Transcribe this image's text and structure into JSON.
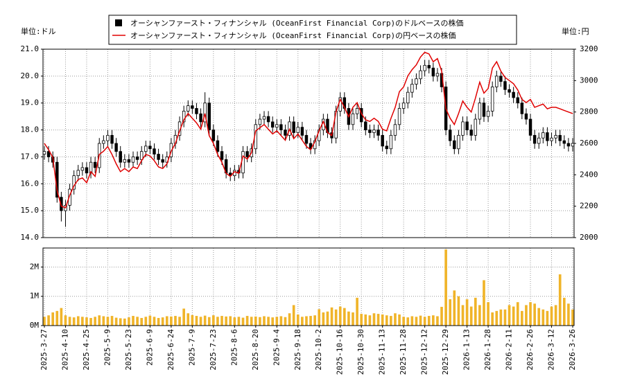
{
  "chart_data": [
    {
      "type": "candlestick",
      "y_unit_label": "単位:ドル",
      "y2_unit_label": "単位:円",
      "candles": {
        "name": "オーシャンファースト・フィナンシャル (OceanFirst Financial Corp)のドルベースの株価",
        "color": "#000000",
        "open": [
          17.1,
          17.2,
          17.0,
          16.8,
          15.5,
          15.0,
          15.2,
          15.8,
          16.3,
          16.5,
          16.6,
          16.4,
          16.8,
          16.6,
          17.5,
          17.6,
          17.8,
          17.5,
          17.2,
          16.8,
          16.9,
          16.8,
          17.0,
          16.9,
          17.2,
          17.4,
          17.3,
          17.1,
          16.9,
          16.8,
          17.0,
          17.5,
          17.8,
          18.3,
          18.7,
          18.9,
          18.8,
          18.6,
          18.3,
          19.0,
          18.0,
          17.6,
          17.2,
          16.9,
          16.4,
          16.3,
          16.5,
          16.4,
          17.2,
          17.0,
          17.3,
          18.2,
          18.4,
          18.5,
          18.3,
          18.1,
          18.2,
          18.0,
          17.8,
          18.3,
          17.9,
          18.1,
          17.8,
          17.5,
          17.3,
          17.6,
          18.0,
          18.4,
          17.9,
          17.7,
          18.7,
          19.2,
          18.8,
          18.2,
          18.6,
          18.8,
          18.3,
          18.0,
          17.9,
          18.0,
          17.8,
          17.4,
          17.3,
          17.8,
          18.2,
          18.8,
          19.0,
          19.4,
          19.7,
          19.9,
          20.2,
          20.4,
          20.3,
          20.0,
          20.1,
          19.6,
          18.0,
          17.6,
          17.3,
          17.8,
          18.3,
          18.0,
          17.8,
          18.4,
          19.0,
          18.5,
          18.7,
          19.6,
          20.0,
          19.8,
          19.5,
          19.4,
          19.2,
          19.0,
          18.6,
          18.4,
          17.8,
          17.5,
          17.7,
          17.9,
          17.6,
          17.7,
          17.8,
          17.6,
          17.5,
          17.4
        ],
        "high": [
          17.4,
          17.4,
          17.2,
          17.0,
          15.7,
          15.4,
          16.0,
          16.5,
          16.7,
          16.8,
          16.8,
          17.0,
          17.0,
          17.7,
          17.8,
          18.0,
          18.0,
          17.7,
          17.4,
          17.1,
          17.1,
          17.2,
          17.2,
          17.4,
          17.6,
          17.6,
          17.5,
          17.3,
          17.1,
          17.2,
          17.7,
          18.0,
          18.5,
          18.9,
          19.1,
          19.1,
          19.0,
          18.8,
          19.4,
          19.2,
          18.2,
          17.8,
          17.4,
          17.1,
          16.6,
          16.7,
          16.7,
          17.4,
          17.4,
          17.5,
          18.4,
          18.6,
          18.7,
          18.7,
          18.5,
          18.4,
          18.4,
          18.2,
          18.5,
          18.5,
          18.3,
          18.3,
          18.0,
          17.7,
          17.8,
          18.2,
          18.6,
          18.6,
          18.1,
          18.9,
          19.4,
          19.4,
          19.0,
          18.8,
          19.0,
          19.0,
          18.5,
          18.2,
          18.2,
          18.2,
          18.0,
          17.6,
          18.0,
          18.4,
          19.0,
          19.2,
          19.6,
          19.9,
          20.1,
          20.4,
          20.6,
          20.6,
          20.5,
          20.3,
          20.3,
          19.8,
          18.2,
          17.8,
          18.0,
          18.5,
          18.5,
          18.2,
          18.6,
          19.2,
          19.2,
          18.9,
          19.8,
          20.2,
          20.2,
          20.0,
          19.7,
          19.6,
          19.4,
          19.2,
          18.8,
          18.6,
          18.0,
          17.9,
          18.1,
          18.1,
          17.9,
          18.0,
          18.0,
          17.8,
          17.7,
          17.7
        ],
        "low": [
          16.9,
          16.8,
          16.6,
          15.3,
          14.6,
          14.4,
          15.0,
          15.6,
          16.1,
          16.3,
          16.2,
          16.2,
          16.4,
          16.4,
          17.3,
          17.4,
          17.3,
          17.0,
          16.6,
          16.6,
          16.6,
          16.6,
          16.7,
          16.7,
          17.0,
          17.1,
          16.9,
          16.7,
          16.6,
          16.6,
          16.8,
          17.3,
          17.6,
          18.1,
          18.5,
          18.6,
          18.4,
          18.1,
          18.1,
          17.8,
          17.4,
          17.0,
          16.7,
          16.2,
          16.1,
          16.1,
          16.2,
          16.2,
          16.8,
          16.8,
          17.1,
          18.0,
          18.2,
          18.1,
          17.9,
          17.9,
          17.8,
          17.6,
          17.6,
          17.7,
          17.7,
          17.6,
          17.3,
          17.1,
          17.1,
          17.4,
          17.8,
          17.7,
          17.5,
          17.5,
          18.5,
          18.6,
          18.0,
          18.0,
          18.4,
          18.1,
          17.8,
          17.7,
          17.7,
          17.6,
          17.2,
          17.1,
          17.1,
          17.6,
          18.0,
          18.6,
          18.8,
          19.2,
          19.5,
          19.7,
          20.0,
          20.1,
          19.8,
          19.8,
          19.4,
          17.8,
          17.4,
          17.1,
          17.1,
          17.6,
          17.8,
          17.6,
          17.6,
          18.2,
          18.3,
          18.3,
          18.5,
          19.4,
          19.6,
          19.3,
          19.2,
          19.0,
          18.8,
          18.4,
          18.2,
          17.6,
          17.3,
          17.3,
          17.5,
          17.4,
          17.4,
          17.5,
          17.4,
          17.3,
          17.2,
          17.2
        ],
        "close": [
          17.2,
          17.0,
          16.8,
          15.5,
          15.0,
          15.2,
          15.8,
          16.3,
          16.5,
          16.6,
          16.4,
          16.8,
          16.6,
          17.5,
          17.6,
          17.8,
          17.5,
          17.2,
          16.8,
          16.9,
          16.8,
          17.0,
          16.9,
          17.2,
          17.4,
          17.3,
          17.1,
          16.9,
          16.8,
          17.0,
          17.5,
          17.8,
          18.3,
          18.7,
          18.9,
          18.8,
          18.6,
          18.3,
          19.0,
          18.0,
          17.6,
          17.2,
          16.9,
          16.4,
          16.3,
          16.5,
          16.4,
          17.2,
          17.0,
          17.3,
          18.2,
          18.4,
          18.5,
          18.3,
          18.1,
          18.2,
          18.0,
          17.8,
          18.3,
          17.9,
          18.1,
          17.8,
          17.5,
          17.3,
          17.6,
          18.0,
          18.4,
          17.9,
          17.7,
          18.7,
          19.2,
          18.8,
          18.2,
          18.6,
          18.8,
          18.3,
          18.0,
          17.9,
          18.0,
          17.8,
          17.4,
          17.3,
          17.8,
          18.2,
          18.8,
          19.0,
          19.4,
          19.7,
          19.9,
          20.2,
          20.4,
          20.3,
          20.0,
          20.1,
          19.6,
          18.0,
          17.6,
          17.3,
          17.8,
          18.3,
          18.0,
          17.8,
          18.4,
          19.0,
          18.5,
          18.7,
          19.6,
          20.0,
          19.8,
          19.5,
          19.4,
          19.2,
          19.0,
          18.6,
          18.4,
          17.8,
          17.5,
          17.7,
          17.9,
          17.6,
          17.7,
          17.8,
          17.6,
          17.5,
          17.4,
          17.5
        ]
      },
      "series": [
        {
          "name": "オーシャンファースト・フィナンシャル (OceanFirst Financial Corp)の円ベースの株価",
          "color": "#e00000",
          "axis": "y2",
          "values": [
            2600,
            2560,
            2510,
            2300,
            2200,
            2190,
            2270,
            2330,
            2370,
            2380,
            2350,
            2420,
            2390,
            2530,
            2550,
            2580,
            2530,
            2470,
            2420,
            2440,
            2420,
            2450,
            2440,
            2490,
            2530,
            2520,
            2490,
            2450,
            2440,
            2470,
            2550,
            2600,
            2680,
            2750,
            2790,
            2760,
            2730,
            2690,
            2790,
            2650,
            2600,
            2530,
            2480,
            2410,
            2390,
            2420,
            2410,
            2520,
            2500,
            2540,
            2680,
            2700,
            2720,
            2690,
            2660,
            2680,
            2650,
            2620,
            2690,
            2630,
            2660,
            2620,
            2580,
            2560,
            2610,
            2680,
            2740,
            2670,
            2650,
            2800,
            2880,
            2830,
            2770,
            2830,
            2860,
            2790,
            2750,
            2740,
            2760,
            2740,
            2690,
            2680,
            2760,
            2830,
            2930,
            2960,
            3030,
            3070,
            3100,
            3150,
            3180,
            3170,
            3120,
            3140,
            3060,
            2820,
            2760,
            2720,
            2790,
            2870,
            2830,
            2800,
            2890,
            2990,
            2920,
            2950,
            3080,
            3120,
            3060,
            3020,
            3000,
            2980,
            2940,
            2880,
            2860,
            2880,
            2830,
            2840,
            2850,
            2820,
            2830,
            2830,
            2820,
            2810,
            2800,
            2790
          ]
        }
      ],
      "ylim": [
        14,
        21
      ],
      "yticks": [
        {
          "value": 14,
          "label": "14.0"
        },
        {
          "value": 15,
          "label": "15.0"
        },
        {
          "value": 16,
          "label": "16.0"
        },
        {
          "value": 17,
          "label": "17.0"
        },
        {
          "value": 18,
          "label": "18.0"
        },
        {
          "value": 19,
          "label": "19.0"
        },
        {
          "value": 20,
          "label": "20.0"
        },
        {
          "value": 21,
          "label": "21.0"
        }
      ],
      "y2lim": [
        2000,
        3200
      ],
      "y2ticks": [
        2000,
        2200,
        2400,
        2600,
        2800,
        3000,
        3200
      ],
      "grid": true
    },
    {
      "type": "bar",
      "categories": [
        "2025-3-27",
        null,
        null,
        null,
        null,
        "2025-4-10",
        null,
        null,
        null,
        null,
        "2025-4-25",
        null,
        null,
        null,
        null,
        "2025-5-9",
        null,
        null,
        null,
        null,
        "2025-5-23",
        null,
        null,
        null,
        null,
        "2025-6-9",
        null,
        null,
        null,
        null,
        "2025-6-24",
        null,
        null,
        null,
        null,
        "2025-7-9",
        null,
        null,
        null,
        null,
        "2025-7-23",
        null,
        null,
        null,
        null,
        "2025-8-6",
        null,
        null,
        null,
        null,
        "2025-8-20",
        null,
        null,
        null,
        null,
        "2025-9-4",
        null,
        null,
        null,
        null,
        "2025-9-18",
        null,
        null,
        null,
        null,
        "2025-10-2",
        null,
        null,
        null,
        null,
        "2025-10-16",
        null,
        null,
        null,
        null,
        "2025-10-30",
        null,
        null,
        null,
        null,
        "2025-11-13",
        null,
        null,
        null,
        null,
        "2025-11-28",
        null,
        null,
        null,
        null,
        "2025-12-12",
        null,
        null,
        null,
        null,
        "2025-12-29",
        null,
        null,
        null,
        null,
        "2026-1-13",
        null,
        null,
        null,
        null,
        "2026-1-28",
        null,
        null,
        null,
        null,
        "2026-2-11",
        null,
        null,
        null,
        null,
        "2026-2-26",
        null,
        null,
        null,
        null,
        "2026-3-12",
        null,
        null,
        null,
        null,
        "2026-3-26"
      ],
      "values": [
        300000,
        350000,
        450000,
        500000,
        600000,
        350000,
        300000,
        280000,
        320000,
        300000,
        280000,
        260000,
        300000,
        350000,
        320000,
        300000,
        330000,
        270000,
        250000,
        240000,
        280000,
        330000,
        300000,
        260000,
        300000,
        340000,
        300000,
        260000,
        280000,
        320000,
        310000,
        330000,
        300000,
        580000,
        420000,
        360000,
        330000,
        300000,
        340000,
        290000,
        350000,
        300000,
        330000,
        310000,
        320000,
        280000,
        300000,
        270000,
        330000,
        300000,
        310000,
        290000,
        320000,
        300000,
        280000,
        300000,
        320000,
        290000,
        420000,
        700000,
        380000,
        300000,
        320000,
        330000,
        350000,
        560000,
        450000,
        480000,
        620000,
        550000,
        650000,
        600000,
        480000,
        450000,
        950000,
        400000,
        380000,
        350000,
        420000,
        400000,
        380000,
        350000,
        330000,
        420000,
        380000,
        300000,
        280000,
        320000,
        300000,
        340000,
        300000,
        330000,
        350000,
        320000,
        640000,
        2600000,
        900000,
        1200000,
        1000000,
        700000,
        900000,
        650000,
        950000,
        700000,
        1550000,
        800000,
        450000,
        500000,
        550000,
        550000,
        700000,
        650000,
        800000,
        500000,
        700000,
        800000,
        750000,
        600000,
        550000,
        500000,
        650000,
        700000,
        1750000,
        950000,
        750000,
        550000
      ],
      "color": "#f0b429",
      "ylim": [
        0,
        2650000
      ],
      "yticks": [
        {
          "value": 0,
          "label": "0M"
        },
        {
          "value": 1000000,
          "label": "1M"
        },
        {
          "value": 2000000,
          "label": "2M"
        }
      ],
      "grid": true
    }
  ]
}
